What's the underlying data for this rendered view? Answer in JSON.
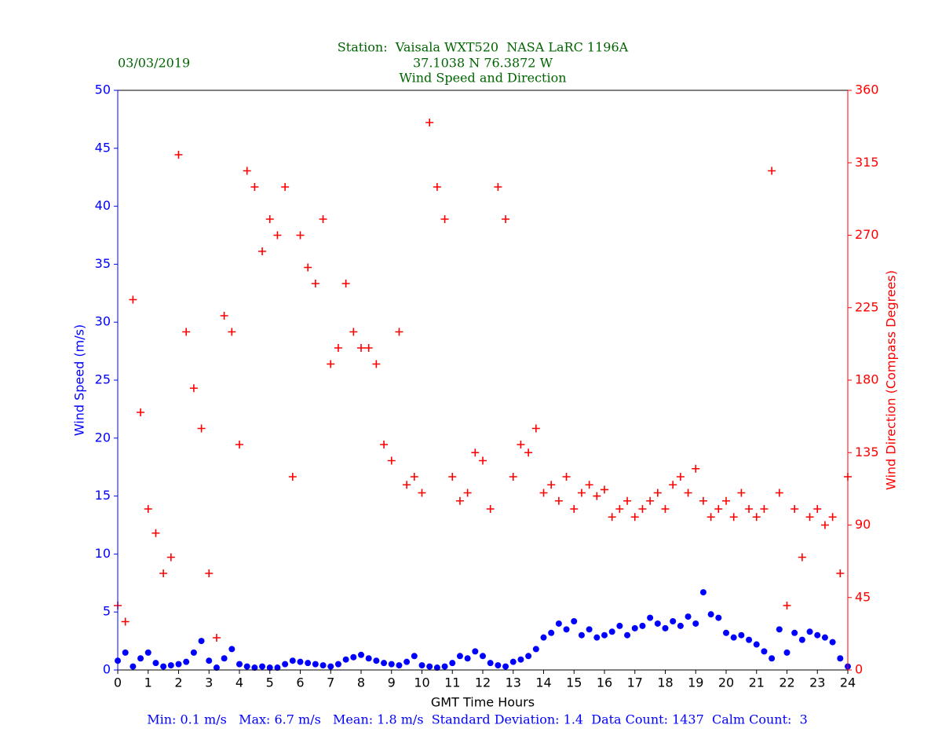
{
  "chart_data": {
    "type": "scatter",
    "title_lines": [
      "Station:  Vaisala WXT520  NASA LaRC 1196A",
      "37.1038 N 76.3872 W",
      "Wind Speed and Direction"
    ],
    "date": "03/03/2019",
    "xlabel": "GMT Time Hours",
    "ylabel": "Wind Speed (m/s)",
    "y2label": "Wind Direction (Compass Degrees)",
    "footer": "Min: 0.1 m/s   Max: 6.7 m/s   Mean: 1.8 m/s  Standard Deviation: 1.4  Data Count: 1437  Calm Count:  3",
    "xlim": [
      0,
      24
    ],
    "xticks": [
      0,
      1,
      2,
      3,
      4,
      5,
      6,
      7,
      8,
      9,
      10,
      11,
      12,
      13,
      14,
      15,
      16,
      17,
      18,
      19,
      20,
      21,
      22,
      23,
      24
    ],
    "ylim": [
      0,
      50
    ],
    "yticks": [
      0,
      5,
      10,
      15,
      20,
      25,
      30,
      35,
      40,
      45,
      50
    ],
    "y2lim": [
      0,
      360
    ],
    "y2ticks": [
      0,
      45,
      90,
      135,
      180,
      225,
      270,
      315,
      360
    ],
    "x": [
      0,
      0.25,
      0.5,
      0.75,
      1,
      1.25,
      1.5,
      1.75,
      2,
      2.25,
      2.5,
      2.75,
      3,
      3.25,
      3.5,
      3.75,
      4,
      4.25,
      4.5,
      4.75,
      5,
      5.25,
      5.5,
      5.75,
      6,
      6.25,
      6.5,
      6.75,
      7,
      7.25,
      7.5,
      7.75,
      8,
      8.25,
      8.5,
      8.75,
      9,
      9.25,
      9.5,
      9.75,
      10,
      10.25,
      10.5,
      10.75,
      11,
      11.25,
      11.5,
      11.75,
      12,
      12.25,
      12.5,
      12.75,
      13,
      13.25,
      13.5,
      13.75,
      14,
      14.25,
      14.5,
      14.75,
      15,
      15.25,
      15.5,
      15.75,
      16,
      16.25,
      16.5,
      16.75,
      17,
      17.25,
      17.5,
      17.75,
      18,
      18.25,
      18.5,
      18.75,
      19,
      19.25,
      19.5,
      19.75,
      20,
      20.25,
      20.5,
      20.75,
      21,
      21.25,
      21.5,
      21.75,
      22,
      22.25,
      22.5,
      22.75,
      23,
      23.25,
      23.5,
      23.75,
      24
    ],
    "series": [
      {
        "name": "Wind Speed",
        "color": "#0000ff",
        "marker": "circle",
        "axis": "y",
        "values": [
          0.8,
          1.5,
          0.3,
          1.0,
          1.5,
          0.6,
          0.3,
          0.4,
          0.5,
          0.7,
          1.5,
          2.5,
          0.8,
          0.2,
          1.0,
          1.8,
          0.5,
          0.3,
          0.2,
          0.3,
          0.2,
          0.2,
          0.5,
          0.8,
          0.7,
          0.6,
          0.5,
          0.4,
          0.3,
          0.5,
          0.9,
          1.1,
          1.3,
          1.0,
          0.8,
          0.6,
          0.5,
          0.4,
          0.7,
          1.2,
          0.4,
          0.3,
          0.2,
          0.3,
          0.6,
          1.2,
          1.0,
          1.6,
          1.2,
          0.6,
          0.4,
          0.3,
          0.7,
          0.9,
          1.2,
          1.8,
          2.8,
          3.2,
          4.0,
          3.5,
          4.2,
          3.0,
          3.5,
          2.8,
          3.0,
          3.3,
          3.8,
          3.0,
          3.6,
          3.8,
          4.5,
          4.0,
          3.6,
          4.2,
          3.8,
          4.6,
          4.0,
          6.7,
          4.8,
          4.5,
          3.2,
          2.8,
          3.0,
          2.6,
          2.2,
          1.6,
          1.0,
          3.5,
          1.5,
          3.2,
          2.6,
          3.3,
          3.0,
          2.8,
          2.4,
          1.0,
          0.3
        ]
      },
      {
        "name": "Wind Direction",
        "color": "#ff0000",
        "marker": "plus",
        "axis": "y2",
        "values": [
          40,
          30,
          230,
          160,
          100,
          85,
          60,
          70,
          320,
          210,
          175,
          150,
          60,
          20,
          220,
          210,
          140,
          310,
          300,
          260,
          280,
          270,
          300,
          120,
          270,
          250,
          240,
          280,
          190,
          200,
          240,
          210,
          200,
          200,
          190,
          140,
          130,
          210,
          115,
          120,
          110,
          340,
          300,
          280,
          120,
          105,
          110,
          135,
          130,
          100,
          300,
          280,
          120,
          140,
          135,
          150,
          110,
          115,
          105,
          120,
          100,
          110,
          115,
          108,
          112,
          95,
          100,
          105,
          95,
          100,
          105,
          110,
          100,
          115,
          120,
          110,
          125,
          105,
          95,
          100,
          105,
          95,
          110,
          100,
          95,
          100,
          310,
          110,
          40,
          100,
          70,
          95,
          100,
          90,
          95,
          60,
          120
        ]
      }
    ]
  }
}
